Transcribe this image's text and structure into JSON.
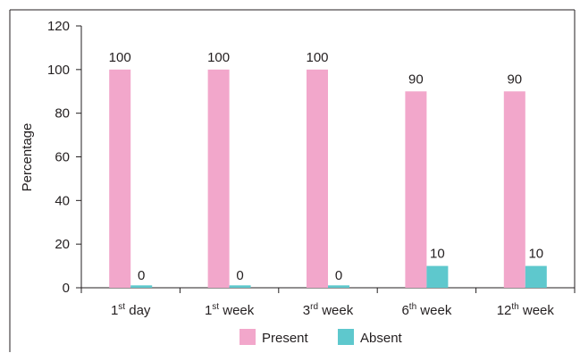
{
  "chart_data": {
    "type": "bar",
    "categories": [
      {
        "pre": "1",
        "sup": "st",
        "post": " day"
      },
      {
        "pre": "1",
        "sup": "st",
        "post": " week"
      },
      {
        "pre": "3",
        "sup": "rd",
        "post": " week"
      },
      {
        "pre": "6",
        "sup": "th",
        "post": " week"
      },
      {
        "pre": "12",
        "sup": "th",
        "post": " week"
      }
    ],
    "series": [
      {
        "name": "Present",
        "values": [
          100,
          100,
          100,
          90,
          90
        ],
        "color": "#f2a7cb"
      },
      {
        "name": "Absent",
        "values": [
          0,
          0,
          0,
          10,
          10
        ],
        "color": "#5ec8cd"
      }
    ],
    "data_labels": [
      [
        "100",
        "100",
        "100",
        "90",
        "90"
      ],
      [
        "0",
        "0",
        "0",
        "10",
        "10"
      ]
    ],
    "title": "",
    "xlabel": "",
    "ylabel": "Percentage",
    "ylim": [
      0,
      120
    ],
    "yticks": [
      0,
      20,
      40,
      60,
      80,
      100,
      120
    ],
    "grid": false,
    "legend_position": "bottom"
  }
}
